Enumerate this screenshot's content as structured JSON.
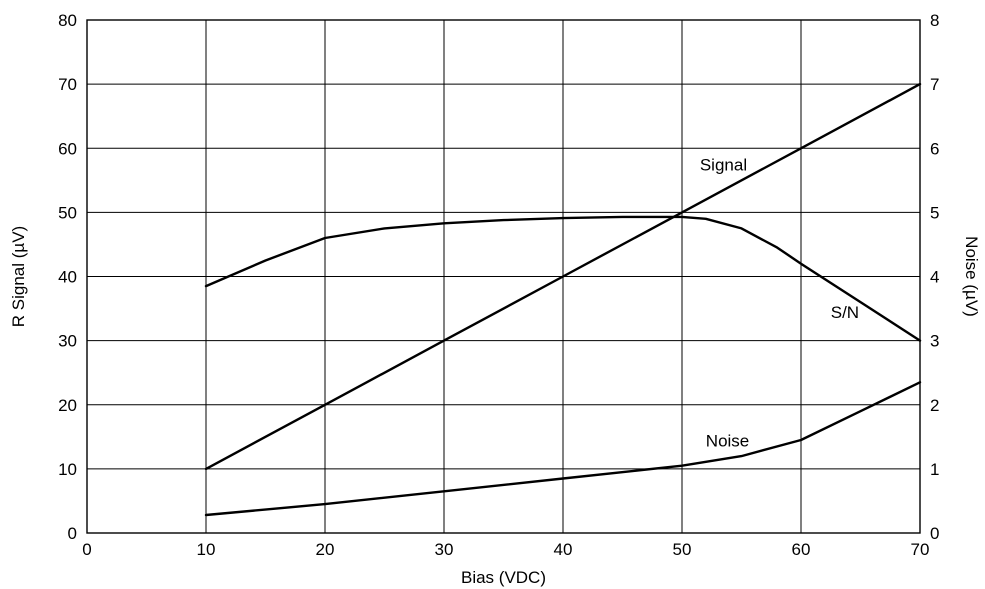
{
  "chart_data": {
    "type": "line",
    "xlabel": "Bias (VDC)",
    "ylabel": "R Signal (µV)",
    "y2label": "Noise (µV)",
    "xlim": [
      0,
      70
    ],
    "ylim": [
      0,
      80
    ],
    "y2lim": [
      0,
      8
    ],
    "xticks": [
      0,
      10,
      20,
      30,
      40,
      50,
      60,
      70
    ],
    "yticks": [
      0,
      10,
      20,
      30,
      40,
      50,
      60,
      70,
      80
    ],
    "y2ticks": [
      0,
      1,
      2,
      3,
      4,
      5,
      6,
      7,
      8
    ],
    "grid": true,
    "series": [
      {
        "name": "Signal",
        "axis": "left",
        "x": [
          10,
          20,
          30,
          40,
          50,
          60,
          70
        ],
        "y": [
          10,
          20,
          30,
          40,
          50,
          60,
          70
        ]
      },
      {
        "name": "S/N",
        "axis": "left",
        "x": [
          10,
          15,
          20,
          25,
          30,
          35,
          40,
          45,
          50,
          52,
          55,
          58,
          60,
          65,
          70
        ],
        "y": [
          38.5,
          42.5,
          46,
          47.5,
          48.3,
          48.8,
          49.1,
          49.3,
          49.3,
          49.0,
          47.5,
          44.5,
          42,
          36,
          30
        ]
      },
      {
        "name": "Noise",
        "axis": "right",
        "x": [
          10,
          20,
          30,
          40,
          50,
          55,
          60,
          65,
          70
        ],
        "y": [
          0.28,
          0.45,
          0.65,
          0.85,
          1.05,
          1.2,
          1.45,
          1.9,
          2.35
        ]
      }
    ],
    "annotations": [
      {
        "text": "Signal",
        "x": 51.5,
        "y": 56.5
      },
      {
        "text": "S/N",
        "x": 62.5,
        "y": 33.5
      },
      {
        "text": "Noise",
        "x": 52,
        "y": 13.5
      }
    ]
  }
}
